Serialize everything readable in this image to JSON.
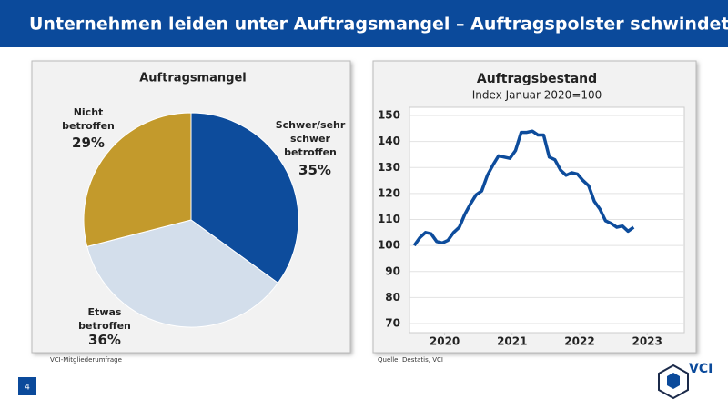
{
  "header": {
    "title": "Unternehmen leiden unter Auftragsmangel – Auftragspolster schwindet"
  },
  "chart_data": [
    {
      "type": "pie",
      "title": "Auftragsmangel",
      "categories": [
        "Schwer/sehr schwer betroffen",
        "Etwas betroffen",
        "Nicht betroffen"
      ],
      "values": [
        35,
        36,
        29
      ],
      "value_labels": [
        "35%",
        "36%",
        "29%"
      ],
      "colors": [
        "#0d4c9c",
        "#d3deeb",
        "#c39a2c"
      ],
      "source": "VCI-Mitgliederumfrage"
    },
    {
      "type": "line",
      "title": "Auftragsbestand",
      "subtitle": "Index Januar 2020=100",
      "x": [
        2020,
        2020.083,
        2020.167,
        2020.25,
        2020.333,
        2020.417,
        2020.5,
        2020.583,
        2020.667,
        2020.75,
        2020.833,
        2020.917,
        2021,
        2021.083,
        2021.167,
        2021.25,
        2021.333,
        2021.417,
        2021.5,
        2021.583,
        2021.667,
        2021.75,
        2021.833,
        2021.917,
        2022,
        2022.083,
        2022.167,
        2022.25,
        2022.333,
        2022.417,
        2022.5,
        2022.583,
        2022.667,
        2022.75,
        2022.833,
        2022.917,
        2023,
        2023.083,
        2023.167,
        2023.25
      ],
      "values": [
        100,
        103,
        105,
        104.5,
        101.5,
        101,
        102,
        105,
        107,
        112,
        116,
        119.5,
        121,
        127,
        131,
        134.5,
        134,
        133.5,
        136.5,
        143.5,
        143.5,
        144,
        142.5,
        142.5,
        134,
        133,
        129,
        127,
        128,
        127.5,
        125,
        123,
        117,
        114,
        109.5,
        108.5,
        107,
        107.5,
        105.5,
        107
      ],
      "color": "#0d4c9c",
      "xlim": [
        2019.93,
        2024.0
      ],
      "xticks": [
        {
          "value": 2020.45,
          "label": "2020"
        },
        {
          "value": 2021.45,
          "label": "2021"
        },
        {
          "value": 2022.45,
          "label": "2022"
        },
        {
          "value": 2023.45,
          "label": "2023"
        }
      ],
      "ylim": [
        70,
        150
      ],
      "yticks": [
        70,
        80,
        90,
        100,
        110,
        120,
        130,
        140,
        150
      ],
      "grid": true,
      "source": "Quelle: Destatis, VCI"
    }
  ],
  "footer": {
    "page": "4",
    "logo": "VCI"
  }
}
